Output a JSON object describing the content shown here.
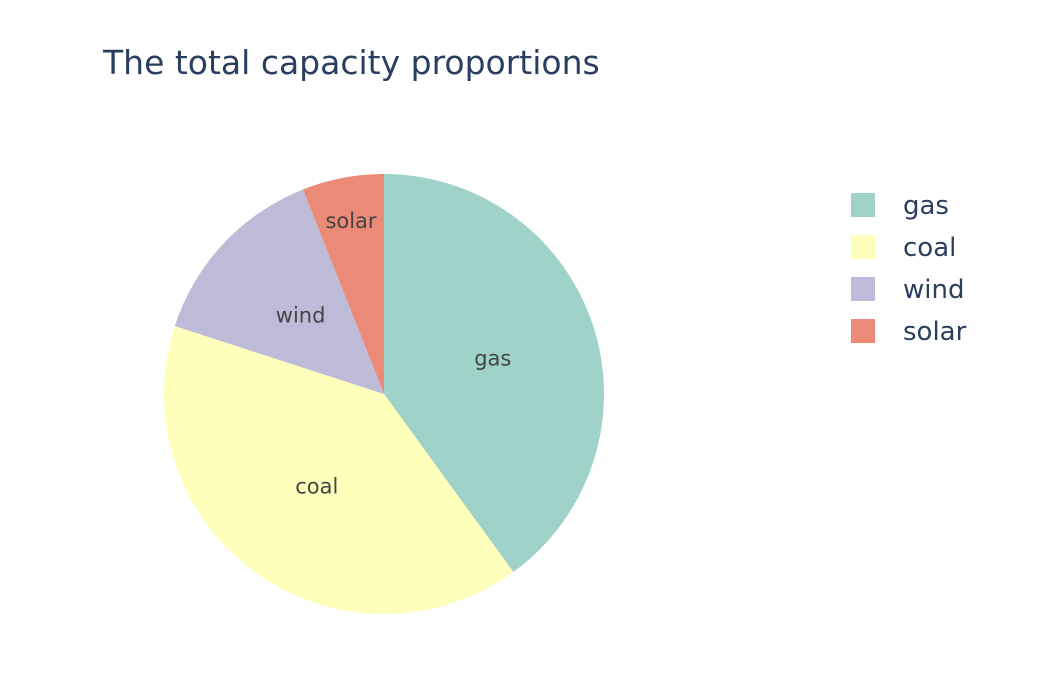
{
  "chart_data": {
    "type": "pie",
    "title": "The total capacity proportions",
    "categories": [
      "gas",
      "coal",
      "wind",
      "solar"
    ],
    "values": [
      40,
      40,
      14,
      6
    ],
    "colors": [
      "#9fd2c8",
      "#ffffbc",
      "#bebbd9",
      "#ec8a78"
    ],
    "start_angle_deg": 0,
    "direction": "clockwise",
    "legend_position": "right",
    "text_info": "label"
  }
}
